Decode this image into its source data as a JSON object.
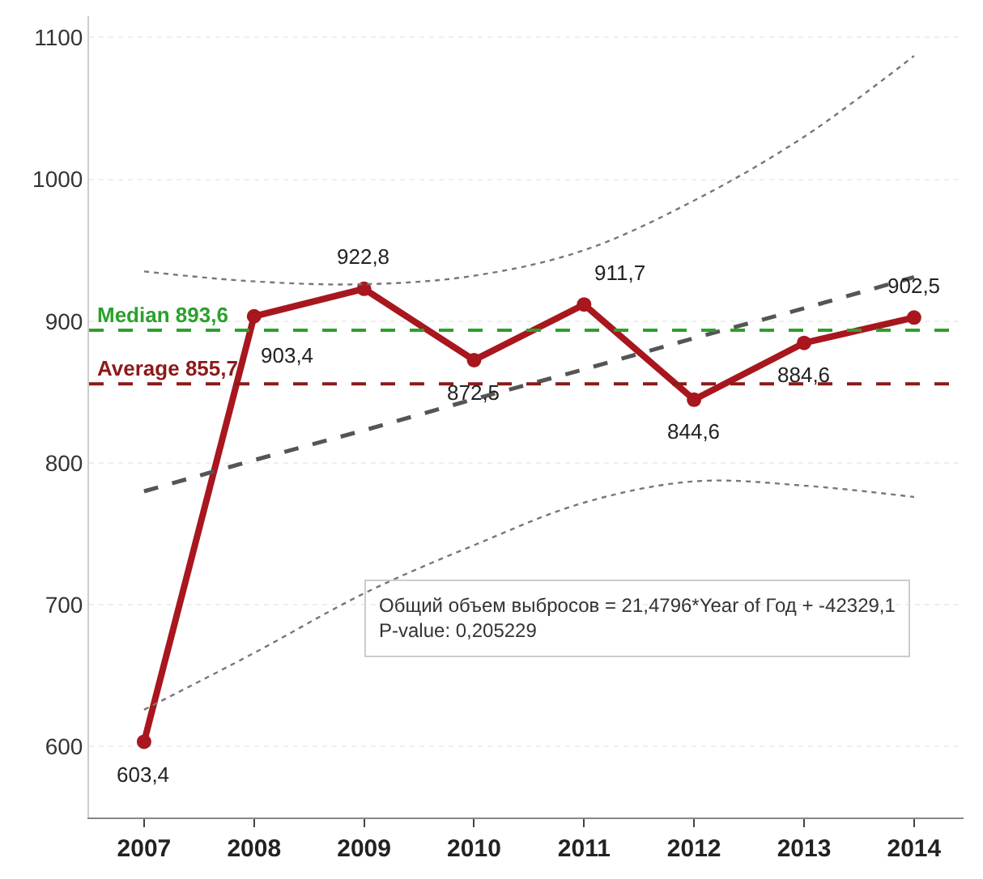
{
  "chart_data": {
    "type": "line",
    "categories": [
      "2007",
      "2008",
      "2009",
      "2010",
      "2011",
      "2012",
      "2013",
      "2014"
    ],
    "series": [
      {
        "color": "#a8161e",
        "values": [
          603.4,
          903.4,
          922.8,
          872.5,
          911.7,
          844.6,
          884.6,
          902.5
        ],
        "value_labels": [
          "603,4",
          "903,4",
          "922,8",
          "872,5",
          "911,7",
          "844,6",
          "884,6",
          "902,5"
        ],
        "marker": "circle",
        "line_style": "solid"
      },
      {
        "color": "#555555",
        "values": [
          780,
          802,
          823,
          845,
          866,
          888,
          909,
          931
        ],
        "marker": "none",
        "line_style": "dashed"
      },
      {
        "color": "#777777",
        "values": [
          935,
          928,
          926,
          932,
          950,
          985,
          1030,
          1087
        ],
        "marker": "none",
        "line_style": "dotted"
      },
      {
        "color": "#777777",
        "values": [
          626,
          666,
          708,
          742,
          772,
          787,
          784,
          776
        ],
        "marker": "none",
        "line_style": "dotted"
      }
    ],
    "ref_lines": [
      {
        "axis": "y",
        "value": 893.6,
        "label": "Median 893,6",
        "color": "#2ca02c",
        "line_style": "dashed"
      },
      {
        "axis": "y",
        "value": 855.7,
        "label": "Average 855,7",
        "color": "#8b1a1a",
        "line_style": "dashed"
      }
    ],
    "annotations": [
      "Общий объем выбросов = 21,4796*Year of Год + -42329,1\nP-value: 0,205229"
    ],
    "ylim": [
      550,
      1115
    ],
    "yticks": [
      600,
      700,
      800,
      900,
      1000,
      1100
    ],
    "grid": "y",
    "legend": false
  }
}
